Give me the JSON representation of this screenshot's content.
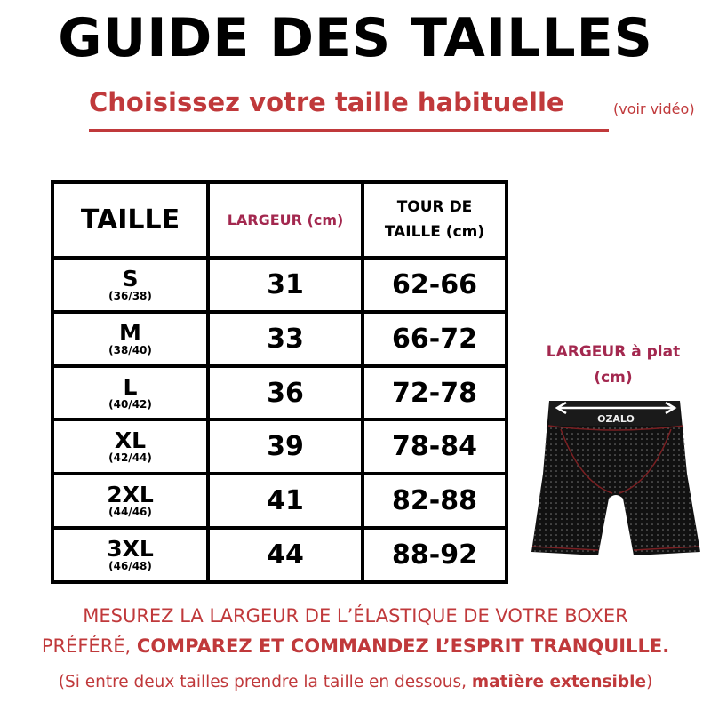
{
  "title": "GUIDE DES TAILLES",
  "subtitle": "Choisissez votre taille habituelle",
  "subtitle_note": "(voir vidéo)",
  "table": {
    "headers": [
      "TAILLE",
      "LARGEUR (cm)",
      "TOUR DE",
      "TAILLE (cm)"
    ],
    "rows": [
      {
        "size": "S",
        "fr": "(36/38)",
        "largeur": "31",
        "tour": "62-66"
      },
      {
        "size": "M",
        "fr": "(38/40)",
        "largeur": "33",
        "tour": "66-72"
      },
      {
        "size": "L",
        "fr": "(40/42)",
        "largeur": "36",
        "tour": "72-78"
      },
      {
        "size": "XL",
        "fr": "(42/44)",
        "largeur": "39",
        "tour": "78-84"
      },
      {
        "size": "2XL",
        "fr": "(44/46)",
        "largeur": "41",
        "tour": "82-88"
      },
      {
        "size": "3XL",
        "fr": "(46/48)",
        "largeur": "44",
        "tour": "88-92"
      }
    ]
  },
  "illustration": {
    "label_line1": "LARGEUR à plat",
    "label_line2": "(cm)",
    "brand": "OZALO"
  },
  "notes": {
    "line1": "MESUREZ LA LARGEUR DE L’ÉLASTIQUE DE VOTRE BOXER",
    "line2_regular": "PRÉFÉRÉ, ",
    "line2_bold": "COMPAREZ ET COMMANDEZ L’ESPRIT TRANQUILLE.",
    "line3_regular": "(Si entre deux tailles prendre la taille en dessous, ",
    "line3_bold": "matière extensible",
    "line3_end": ")"
  },
  "colors": {
    "accent_red": "#c0393b",
    "header_maroon": "#a3284f",
    "text": "#000000"
  }
}
